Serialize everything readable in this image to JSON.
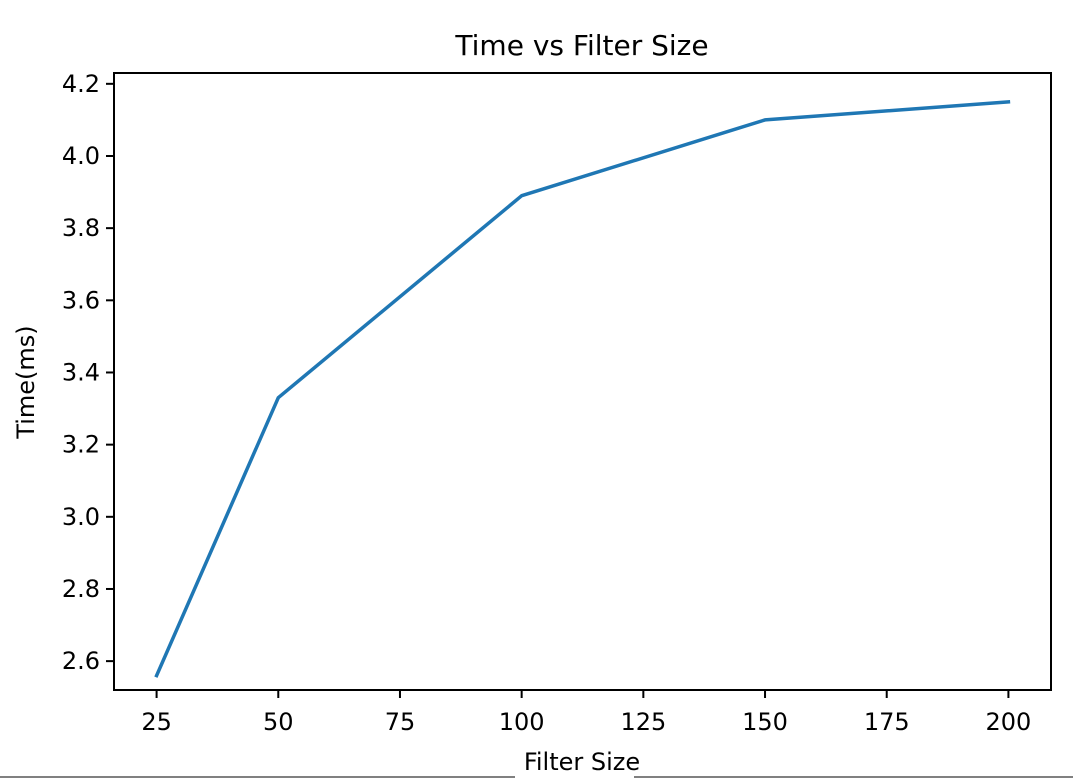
{
  "chart_data": {
    "type": "line",
    "title": "Time vs Filter Size",
    "xlabel": "Filter Size",
    "ylabel": "Time(ms)",
    "x": [
      25,
      50,
      100,
      150,
      200
    ],
    "series": [
      {
        "values": [
          2.56,
          3.33,
          3.89,
          4.1,
          4.15
        ],
        "color": "#1f77b4"
      }
    ],
    "xlim": [
      16.25,
      208.75
    ],
    "ylim": [
      2.52,
      4.23
    ],
    "xticks": [
      25,
      50,
      75,
      100,
      125,
      150,
      175,
      200
    ],
    "xtick_labels": [
      "25",
      "50",
      "75",
      "100",
      "125",
      "150",
      "175",
      "200"
    ],
    "yticks": [
      2.6,
      2.8,
      3.0,
      3.2,
      3.4,
      3.6,
      3.8,
      4.0,
      4.2
    ],
    "ytick_labels": [
      "2.6",
      "2.8",
      "3.0",
      "3.2",
      "3.4",
      "3.6",
      "3.8",
      "4.0",
      "4.2"
    ],
    "grid": false,
    "legend": false
  }
}
